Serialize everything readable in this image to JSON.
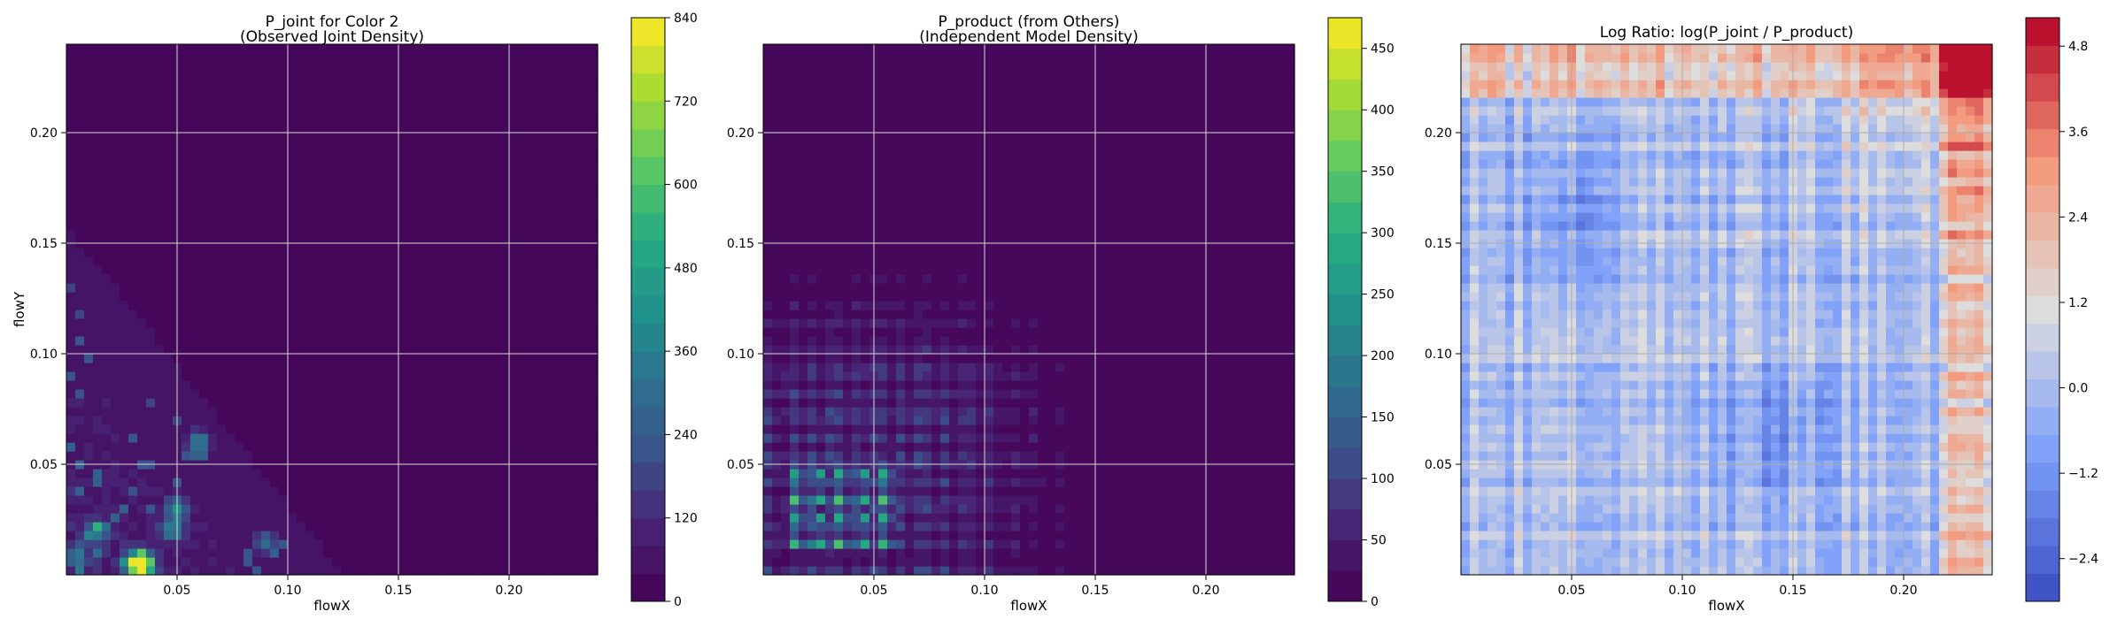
{
  "chart_data": [
    {
      "type": "heatmap",
      "title": "P_joint for Color 2\n(Observed Joint Density)",
      "xlabel": "flowX",
      "ylabel": "flowY",
      "xlim": [
        0.0,
        0.24
      ],
      "ylim": [
        0.0,
        0.24
      ],
      "xticks": [
        0.05,
        0.1,
        0.15,
        0.2
      ],
      "xtick_labels": [
        "0.05",
        "0.10",
        "0.15",
        "0.20"
      ],
      "yticks": [
        0.05,
        0.1,
        0.15,
        0.2
      ],
      "ytick_labels": [
        "0.05",
        "0.10",
        "0.15",
        "0.20"
      ],
      "grid": true,
      "colormap": "viridis",
      "colorbar": {
        "min": 0,
        "max": 840,
        "levels": 21,
        "ticks": [
          0,
          120,
          240,
          360,
          480,
          600,
          720,
          840
        ],
        "tick_labels": [
          "0",
          "120",
          "240",
          "360",
          "480",
          "600",
          "720",
          "840"
        ]
      },
      "density_extent": {
        "x": [
          0.0,
          0.12
        ],
        "y": [
          0.0,
          0.15
        ]
      },
      "peaks": [
        {
          "x": 0.035,
          "y": 0.005,
          "value": 780
        },
        {
          "x": 0.03,
          "y": 0.005,
          "value": 560
        },
        {
          "x": 0.06,
          "y": 0.06,
          "value": 360
        },
        {
          "x": 0.05,
          "y": 0.03,
          "value": 360
        },
        {
          "x": 0.015,
          "y": 0.02,
          "value": 320
        },
        {
          "x": 0.048,
          "y": 0.02,
          "value": 300
        },
        {
          "x": 0.005,
          "y": 0.008,
          "value": 280
        },
        {
          "x": 0.09,
          "y": 0.015,
          "value": 240
        }
      ]
    },
    {
      "type": "heatmap",
      "title": "P_product (from Others)\n(Independent Model Density)",
      "xlabel": "flowX",
      "ylabel": "",
      "xlim": [
        0.0,
        0.24
      ],
      "ylim": [
        0.0,
        0.24
      ],
      "xticks": [
        0.05,
        0.1,
        0.15,
        0.2
      ],
      "xtick_labels": [
        "0.05",
        "0.10",
        "0.15",
        "0.20"
      ],
      "yticks": [
        0.05,
        0.1,
        0.15,
        0.2
      ],
      "ytick_labels": [
        "0.05",
        "0.10",
        "0.15",
        "0.20"
      ],
      "grid": true,
      "colormap": "viridis",
      "colorbar": {
        "min": 0,
        "max": 475,
        "levels": 19,
        "ticks": [
          0,
          50,
          100,
          150,
          200,
          250,
          300,
          350,
          400,
          450
        ],
        "tick_labels": [
          "0",
          "50",
          "100",
          "150",
          "200",
          "250",
          "300",
          "350",
          "400",
          "450"
        ]
      },
      "density_extent": {
        "x": [
          0.0,
          0.16
        ],
        "y": [
          0.0,
          0.16
        ]
      },
      "grid_peaks": {
        "x": [
          0.015,
          0.025,
          0.035,
          0.045,
          0.055
        ],
        "y": [
          0.015,
          0.025,
          0.035,
          0.045
        ],
        "value": 310
      }
    },
    {
      "type": "heatmap",
      "title": "Log Ratio: log(P_joint / P_product)",
      "xlabel": "flowX",
      "ylabel": "",
      "xlim": [
        0.0,
        0.24
      ],
      "ylim": [
        0.0,
        0.24
      ],
      "xticks": [
        0.05,
        0.1,
        0.15,
        0.2
      ],
      "xtick_labels": [
        "0.05",
        "0.10",
        "0.15",
        "0.20"
      ],
      "yticks": [
        0.05,
        0.1,
        0.15,
        0.2
      ],
      "ytick_labels": [
        "0.05",
        "0.10",
        "0.15",
        "0.20"
      ],
      "grid": true,
      "colormap": "coolwarm",
      "colorbar": {
        "min": -3.0,
        "max": 5.2,
        "levels": 21,
        "ticks": [
          -2.4,
          -1.2,
          0.0,
          1.2,
          2.4,
          3.6,
          4.8
        ],
        "tick_labels": [
          "−2.4",
          "−1.2",
          "0.0",
          "1.2",
          "2.4",
          "3.6",
          "4.8"
        ]
      },
      "hot_corner": {
        "x": 0.23,
        "y": 0.23,
        "value": 4.8
      }
    }
  ]
}
